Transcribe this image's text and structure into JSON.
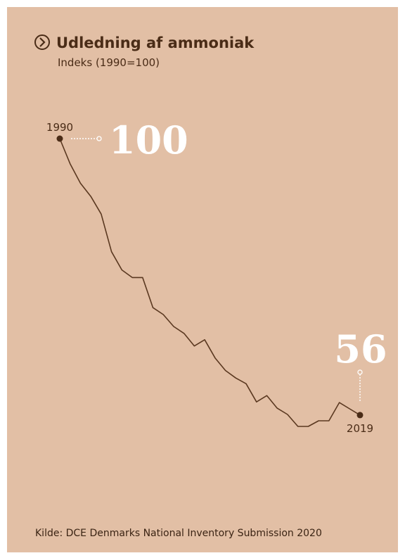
{
  "chart_data": {
    "type": "line",
    "title": "Udledning af ammoniak",
    "subtitle": "Indeks (1990=100)",
    "source": "Kilde: DCE Denmarks National Inventory Submission 2020",
    "color": "#5a3820",
    "background": "#e2bfa5",
    "x": [
      1990,
      1991,
      1992,
      1993,
      1994,
      1995,
      1996,
      1997,
      1998,
      1999,
      2000,
      2001,
      2002,
      2003,
      2004,
      2005,
      2006,
      2007,
      2008,
      2009,
      2010,
      2011,
      2012,
      2013,
      2014,
      2015,
      2016,
      2017,
      2018,
      2019
    ],
    "values": [
      100,
      96.0,
      92.9,
      90.8,
      88.0,
      82.0,
      79.1,
      77.9,
      77.9,
      73.1,
      72.0,
      70.1,
      69.0,
      67.0,
      68.0,
      65.1,
      63.1,
      61.9,
      61.0,
      58.1,
      59.1,
      57.1,
      56.1,
      54.2,
      54.2,
      55.1,
      55.1,
      58.0,
      57.0,
      56
    ]
  }
}
